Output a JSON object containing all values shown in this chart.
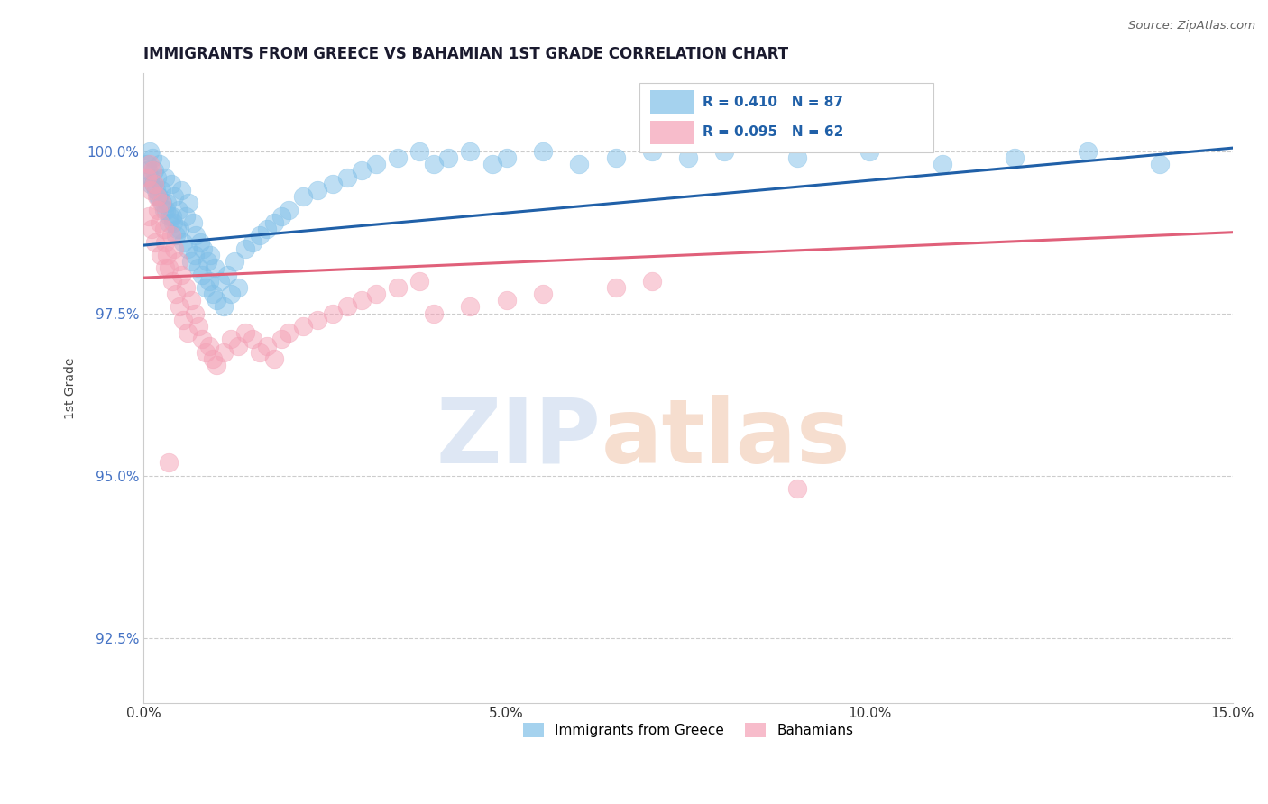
{
  "title": "IMMIGRANTS FROM GREECE VS BAHAMIAN 1ST GRADE CORRELATION CHART",
  "source_text": "Source: ZipAtlas.com",
  "ylabel": "1st Grade",
  "xlim": [
    0.0,
    15.0
  ],
  "ylim": [
    91.5,
    101.2
  ],
  "xticks": [
    0.0,
    5.0,
    10.0,
    15.0
  ],
  "xtick_labels": [
    "0.0%",
    "5.0%",
    "10.0%",
    "15.0%"
  ],
  "yticks": [
    92.5,
    95.0,
    97.5,
    100.0
  ],
  "ytick_labels": [
    "92.5%",
    "95.0%",
    "97.5%",
    "100.0%"
  ],
  "blue_R": 0.41,
  "blue_N": 87,
  "pink_R": 0.095,
  "pink_N": 62,
  "blue_color": "#7fbfe8",
  "pink_color": "#f4a0b5",
  "blue_line_color": "#2060a8",
  "pink_line_color": "#e0607a",
  "legend_label_blue": "Immigrants from Greece",
  "legend_label_pink": "Bahamians",
  "blue_line_x0": 0.0,
  "blue_line_y0": 98.55,
  "blue_line_x1": 15.0,
  "blue_line_y1": 100.05,
  "pink_line_x0": 0.0,
  "pink_line_y0": 98.05,
  "pink_line_x1": 15.0,
  "pink_line_y1": 98.75,
  "blue_scatter_x": [
    0.05,
    0.08,
    0.1,
    0.12,
    0.15,
    0.18,
    0.2,
    0.22,
    0.25,
    0.28,
    0.3,
    0.32,
    0.35,
    0.38,
    0.4,
    0.42,
    0.45,
    0.48,
    0.5,
    0.52,
    0.55,
    0.58,
    0.6,
    0.62,
    0.65,
    0.68,
    0.7,
    0.72,
    0.75,
    0.78,
    0.8,
    0.82,
    0.85,
    0.88,
    0.9,
    0.92,
    0.95,
    0.98,
    1.0,
    1.05,
    1.1,
    1.15,
    1.2,
    1.25,
    1.3,
    1.4,
    1.5,
    1.6,
    1.7,
    1.8,
    1.9,
    2.0,
    2.2,
    2.4,
    2.6,
    2.8,
    3.0,
    3.2,
    3.5,
    3.8,
    4.0,
    4.2,
    4.5,
    4.8,
    5.0,
    5.5,
    6.0,
    6.5,
    7.0,
    7.5,
    8.0,
    9.0,
    10.0,
    11.0,
    12.0,
    13.0,
    14.0,
    0.06,
    0.09,
    0.13,
    0.17,
    0.21,
    0.26,
    0.31,
    0.36,
    0.41,
    0.46
  ],
  "blue_scatter_y": [
    99.8,
    100.0,
    99.5,
    99.9,
    99.7,
    99.6,
    99.3,
    99.8,
    99.4,
    99.1,
    99.6,
    99.2,
    98.9,
    99.5,
    99.0,
    99.3,
    98.7,
    99.1,
    98.8,
    99.4,
    98.6,
    99.0,
    98.5,
    99.2,
    98.3,
    98.9,
    98.4,
    98.7,
    98.2,
    98.6,
    98.1,
    98.5,
    97.9,
    98.3,
    98.0,
    98.4,
    97.8,
    98.2,
    97.7,
    98.0,
    97.6,
    98.1,
    97.8,
    98.3,
    97.9,
    98.5,
    98.6,
    98.7,
    98.8,
    98.9,
    99.0,
    99.1,
    99.3,
    99.4,
    99.5,
    99.6,
    99.7,
    99.8,
    99.9,
    100.0,
    99.8,
    99.9,
    100.0,
    99.8,
    99.9,
    100.0,
    99.8,
    99.9,
    100.0,
    99.9,
    100.0,
    99.9,
    100.0,
    99.8,
    99.9,
    100.0,
    99.8,
    99.7,
    99.6,
    99.5,
    99.4,
    99.3,
    99.2,
    99.1,
    99.0,
    98.9,
    98.8
  ],
  "pink_scatter_x": [
    0.05,
    0.08,
    0.1,
    0.12,
    0.15,
    0.18,
    0.2,
    0.22,
    0.25,
    0.28,
    0.3,
    0.32,
    0.35,
    0.38,
    0.4,
    0.42,
    0.45,
    0.48,
    0.5,
    0.52,
    0.55,
    0.58,
    0.6,
    0.65,
    0.7,
    0.75,
    0.8,
    0.85,
    0.9,
    0.95,
    1.0,
    1.1,
    1.2,
    1.3,
    1.4,
    1.5,
    1.6,
    1.7,
    1.8,
    1.9,
    2.0,
    2.2,
    2.4,
    2.6,
    2.8,
    3.0,
    3.2,
    3.5,
    3.8,
    4.0,
    4.5,
    5.0,
    5.5,
    6.5,
    7.0,
    9.0,
    0.07,
    0.11,
    0.16,
    0.23,
    0.29,
    0.34
  ],
  "pink_scatter_y": [
    99.6,
    99.8,
    99.4,
    99.7,
    99.5,
    99.3,
    99.1,
    98.9,
    99.2,
    98.8,
    98.6,
    98.4,
    98.2,
    98.7,
    98.0,
    98.5,
    97.8,
    98.3,
    97.6,
    98.1,
    97.4,
    97.9,
    97.2,
    97.7,
    97.5,
    97.3,
    97.1,
    96.9,
    97.0,
    96.8,
    96.7,
    96.9,
    97.1,
    97.0,
    97.2,
    97.1,
    96.9,
    97.0,
    96.8,
    97.1,
    97.2,
    97.3,
    97.4,
    97.5,
    97.6,
    97.7,
    97.8,
    97.9,
    98.0,
    97.5,
    97.6,
    97.7,
    97.8,
    97.9,
    98.0,
    94.8,
    99.0,
    98.8,
    98.6,
    98.4,
    98.2,
    95.2
  ]
}
